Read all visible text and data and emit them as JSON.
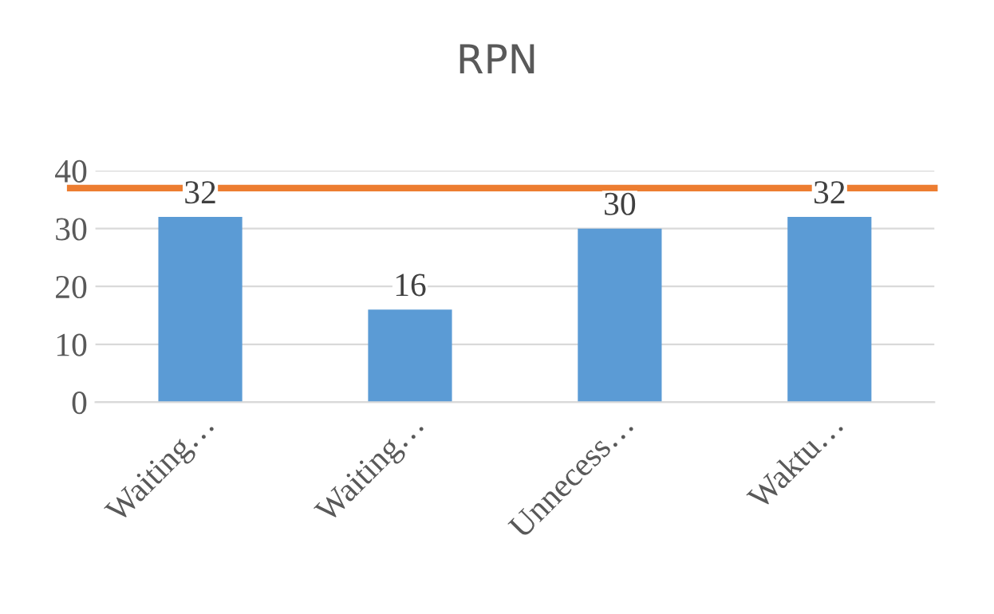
{
  "chart_data": {
    "type": "bar",
    "title": "RPN",
    "categories": [
      "Waiting…",
      "Waiting…",
      "Unnecess…",
      "Waktu…"
    ],
    "values": [
      32,
      16,
      30,
      32
    ],
    "color": "#5b9bd5",
    "ylim": [
      0,
      40
    ],
    "yticks": [
      0,
      10,
      20,
      30,
      40
    ],
    "grid": "y",
    "data_labels": true,
    "ref_lines": [
      {
        "axis": "y",
        "value": 37,
        "color": "#ed7d31",
        "line_style": "solid"
      }
    ]
  }
}
